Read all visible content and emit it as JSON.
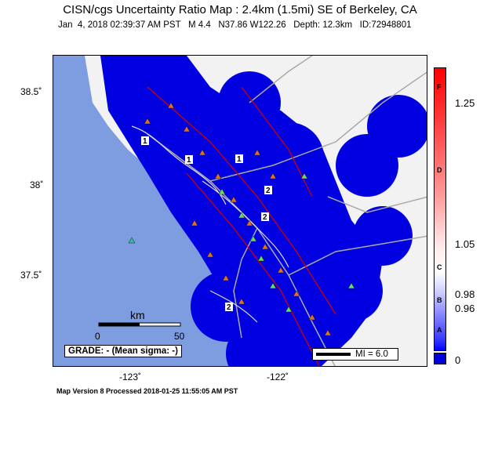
{
  "title": "CISN/cgs Uncertainty Ratio Map : 2.4km (1.5mi) SE of Berkeley, CA",
  "subtitle": "Jan  4, 2018 02:39:37 AM PST   M 4.4   N37.86 W122.26   Depth: 12.3km   ID:72948801",
  "map": {
    "lat_ticks": [
      "38.5˚",
      "38˚",
      "37.5˚"
    ],
    "lon_ticks": [
      "-123˚",
      "-122˚"
    ],
    "scale": {
      "unit": "km",
      "start": "0",
      "end": "50"
    },
    "grade_label": "GRADE: - (Mean sigma: -)",
    "mi_label": "MI = 6.0",
    "contour_labels": [
      "1",
      "1",
      "1",
      "2",
      "2",
      "2"
    ],
    "colors": {
      "water": "#7e9ce0",
      "land": "#ffffff",
      "uncertainty": "#0000e0",
      "fault": "#d00000",
      "road": "#aaaaaa"
    }
  },
  "colorbar": {
    "ticks": [
      "1.25",
      "1.05",
      "0.98",
      "0.96",
      "0"
    ],
    "letters": [
      "F",
      "D",
      "C",
      "B",
      "A"
    ]
  },
  "footer": "Map Version 8 Processed 2018-01-25 11:55:05 AM PST"
}
